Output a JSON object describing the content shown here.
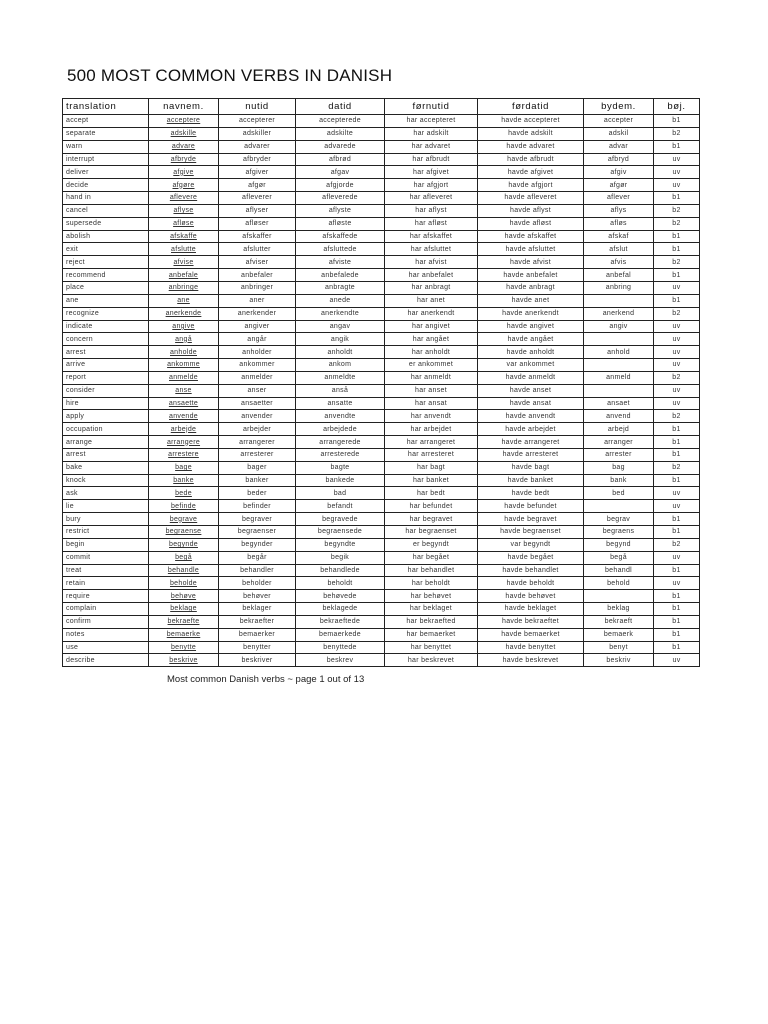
{
  "title": "500 MOST COMMON VERBS IN DANISH",
  "columns": [
    "translation",
    "navnem.",
    "nutid",
    "datid",
    "førnutid",
    "førdatid",
    "bydem.",
    "bøj."
  ],
  "rows": [
    [
      "accept",
      "acceptere",
      "accepterer",
      "accepterede",
      "har accepteret",
      "havde accepteret",
      "accepter",
      "b1"
    ],
    [
      "separate",
      "adskille",
      "adskiller",
      "adskilte",
      "har adskilt",
      "havde adskilt",
      "adskil",
      "b2"
    ],
    [
      "warn",
      "advare",
      "advarer",
      "advarede",
      "har advaret",
      "havde advaret",
      "advar",
      "b1"
    ],
    [
      "interrupt",
      "afbryde",
      "afbryder",
      "afbrød",
      "har afbrudt",
      "havde afbrudt",
      "afbryd",
      "uv"
    ],
    [
      "deliver",
      "afgive",
      "afgiver",
      "afgav",
      "har afgivet",
      "havde afgivet",
      "afgiv",
      "uv"
    ],
    [
      "decide",
      "afgøre",
      "afgør",
      "afgjorde",
      "har afgjort",
      "havde afgjort",
      "afgør",
      "uv"
    ],
    [
      "hand in",
      "aflevere",
      "afleverer",
      "afleverede",
      "har afleveret",
      "havde afleveret",
      "aflever",
      "b1"
    ],
    [
      "cancel",
      "aflyse",
      "aflyser",
      "aflyste",
      "har aflyst",
      "havde aflyst",
      "aflys",
      "b2"
    ],
    [
      "supersede",
      "afløse",
      "afløser",
      "afløste",
      "har afløst",
      "havde afløst",
      "afløs",
      "b2"
    ],
    [
      "abolish",
      "afskaffe",
      "afskaffer",
      "afskaffede",
      "har afskaffet",
      "havde afskaffet",
      "afskaf",
      "b1"
    ],
    [
      "exit",
      "afslutte",
      "afslutter",
      "afsluttede",
      "har afsluttet",
      "havde afsluttet",
      "afslut",
      "b1"
    ],
    [
      "reject",
      "afvise",
      "afviser",
      "afviste",
      "har afvist",
      "havde afvist",
      "afvis",
      "b2"
    ],
    [
      "recommend",
      "anbefale",
      "anbefaler",
      "anbefalede",
      "har anbefalet",
      "havde anbefalet",
      "anbefal",
      "b1"
    ],
    [
      "place",
      "anbringe",
      "anbringer",
      "anbragte",
      "har anbragt",
      "havde anbragt",
      "anbring",
      "uv"
    ],
    [
      "ane",
      "ane",
      "aner",
      "anede",
      "har anet",
      "havde anet",
      "",
      "b1"
    ],
    [
      "recognize",
      "anerkende",
      "anerkender",
      "anerkendte",
      "har anerkendt",
      "havde anerkendt",
      "anerkend",
      "b2"
    ],
    [
      "indicate",
      "angive",
      "angiver",
      "angav",
      "har angivet",
      "havde angivet",
      "angiv",
      "uv"
    ],
    [
      "concern",
      "angå",
      "angår",
      "angik",
      "har angået",
      "havde angået",
      "",
      "uv"
    ],
    [
      "arrest",
      "anholde",
      "anholder",
      "anholdt",
      "har anholdt",
      "havde anholdt",
      "anhold",
      "uv"
    ],
    [
      "arrive",
      "ankomme",
      "ankommer",
      "ankom",
      "er ankommet",
      "var ankommet",
      "",
      "uv"
    ],
    [
      "report",
      "anmelde",
      "anmelder",
      "anmeldte",
      "har anmeldt",
      "havde anmeldt",
      "anmeld",
      "b2"
    ],
    [
      "consider",
      "anse",
      "anser",
      "anså",
      "har anset",
      "havde anset",
      "",
      "uv"
    ],
    [
      "hire",
      "ansaette",
      "ansaetter",
      "ansatte",
      "har ansat",
      "havde ansat",
      "ansaet",
      "uv"
    ],
    [
      "apply",
      "anvende",
      "anvender",
      "anvendte",
      "har anvendt",
      "havde anvendt",
      "anvend",
      "b2"
    ],
    [
      "occupation",
      "arbejde",
      "arbejder",
      "arbejdede",
      "har arbejdet",
      "havde arbejdet",
      "arbejd",
      "b1"
    ],
    [
      "arrange",
      "arrangere",
      "arrangerer",
      "arrangerede",
      "har arrangeret",
      "havde arrangeret",
      "arranger",
      "b1"
    ],
    [
      "arrest",
      "arrestere",
      "arresterer",
      "arresterede",
      "har arresteret",
      "havde arresteret",
      "arrester",
      "b1"
    ],
    [
      "bake",
      "bage",
      "bager",
      "bagte",
      "har bagt",
      "havde bagt",
      "bag",
      "b2"
    ],
    [
      "knock",
      "banke",
      "banker",
      "bankede",
      "har banket",
      "havde banket",
      "bank",
      "b1"
    ],
    [
      "ask",
      "bede",
      "beder",
      "bad",
      "har bedt",
      "havde bedt",
      "bed",
      "uv"
    ],
    [
      "lie",
      "befinde",
      "befinder",
      "befandt",
      "har befundet",
      "havde befundet",
      "",
      "uv"
    ],
    [
      "bury",
      "begrave",
      "begraver",
      "begravede",
      "har begravet",
      "havde begravet",
      "begrav",
      "b1"
    ],
    [
      "restrict",
      "begraense",
      "begraenser",
      "begraensede",
      "har begraenset",
      "havde begraenset",
      "begraens",
      "b1"
    ],
    [
      "begin",
      "begynde",
      "begynder",
      "begyndte",
      "er begyndt",
      "var begyndt",
      "begynd",
      "b2"
    ],
    [
      "commit",
      "begå",
      "begår",
      "begik",
      "har begået",
      "havde begået",
      "begå",
      "uv"
    ],
    [
      "treat",
      "behandle",
      "behandler",
      "behandlede",
      "har behandlet",
      "havde behandlet",
      "behandl",
      "b1"
    ],
    [
      "retain",
      "beholde",
      "beholder",
      "beholdt",
      "har beholdt",
      "havde beholdt",
      "behold",
      "uv"
    ],
    [
      "require",
      "behøve",
      "behøver",
      "behøvede",
      "har behøvet",
      "havde behøvet",
      "",
      "b1"
    ],
    [
      "complain",
      "beklage",
      "beklager",
      "beklagede",
      "har beklaget",
      "havde beklaget",
      "beklag",
      "b1"
    ],
    [
      "confirm",
      "bekraefte",
      "bekraefter",
      "bekraeftede",
      "har bekraefted",
      "havde bekraeftet",
      "bekraeft",
      "b1"
    ],
    [
      "notes",
      "bemaerke",
      "bemaerker",
      "bemaerkede",
      "har bemaerket",
      "havde bemaerket",
      "bemaerk",
      "b1"
    ],
    [
      "use",
      "benytte",
      "benytter",
      "benyttede",
      "har benyttet",
      "havde benyttet",
      "benyt",
      "b1"
    ],
    [
      "describe",
      "beskrive",
      "beskriver",
      "beskrev",
      "har beskrevet",
      "havde beskrevet",
      "beskriv",
      "uv"
    ]
  ],
  "footer": "Most common Danish verbs ~ page 1 out of 13"
}
